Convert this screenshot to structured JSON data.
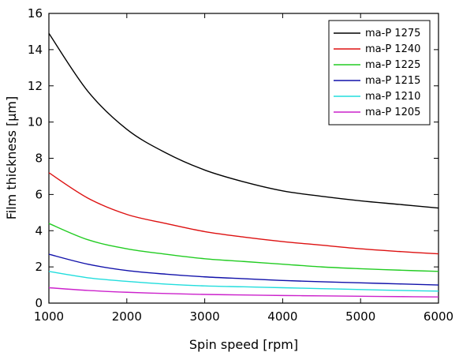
{
  "chart_data": {
    "type": "line",
    "title": "",
    "xlabel": "Spin speed [rpm]",
    "ylabel": "Film thickness [µm]",
    "xlim": [
      1000,
      6000
    ],
    "ylim": [
      0,
      16
    ],
    "x_ticks": [
      1000,
      2000,
      3000,
      4000,
      5000,
      6000
    ],
    "y_ticks": [
      0,
      2,
      4,
      6,
      8,
      10,
      12,
      14,
      16
    ],
    "grid": false,
    "legend_position": "top-right",
    "x": [
      1000,
      1500,
      2000,
      2500,
      3000,
      3500,
      4000,
      4500,
      5000,
      5500,
      6000
    ],
    "series": [
      {
        "name": "ma-P 1275",
        "color": "#000000",
        "values": [
          14.9,
          11.7,
          9.6,
          8.3,
          7.35,
          6.7,
          6.2,
          5.9,
          5.65,
          5.45,
          5.25
        ]
      },
      {
        "name": "ma-P 1240",
        "color": "#dd1111",
        "values": [
          7.2,
          5.8,
          4.9,
          4.4,
          3.95,
          3.65,
          3.4,
          3.2,
          3.0,
          2.85,
          2.72
        ]
      },
      {
        "name": "ma-P 1225",
        "color": "#22cc22",
        "values": [
          4.4,
          3.5,
          3.0,
          2.7,
          2.45,
          2.3,
          2.15,
          2.0,
          1.9,
          1.82,
          1.75
        ]
      },
      {
        "name": "ma-P 1215",
        "color": "#1111aa",
        "values": [
          2.7,
          2.15,
          1.8,
          1.6,
          1.45,
          1.35,
          1.25,
          1.18,
          1.12,
          1.06,
          1.0
        ]
      },
      {
        "name": "ma-P 1210",
        "color": "#22dddd",
        "values": [
          1.75,
          1.4,
          1.2,
          1.05,
          0.95,
          0.9,
          0.85,
          0.8,
          0.75,
          0.7,
          0.66
        ]
      },
      {
        "name": "ma-P 1205",
        "color": "#cc22cc",
        "values": [
          0.85,
          0.7,
          0.6,
          0.53,
          0.48,
          0.45,
          0.42,
          0.4,
          0.38,
          0.36,
          0.34
        ]
      }
    ]
  }
}
